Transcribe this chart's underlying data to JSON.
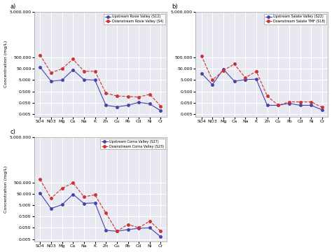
{
  "categories": [
    "SO4",
    "NO3",
    "Mg",
    "Ca",
    "Na",
    "K",
    "Zn",
    "Cu",
    "Pb",
    "Cd",
    "Ni",
    "Cr"
  ],
  "panels": [
    {
      "label": "a)",
      "upstream_label": "Upstream Rosie Valley (S12)",
      "downstream_label": "Downstream Rosie Valley (S4)",
      "upstream": [
        70.0,
        4.0,
        5.0,
        40.0,
        5.5,
        5.0,
        0.03,
        0.022,
        0.03,
        0.055,
        0.04,
        0.01
      ],
      "downstream": [
        800.0,
        22.0,
        50.0,
        350.0,
        30.0,
        30.0,
        0.35,
        0.2,
        0.18,
        0.16,
        0.28,
        0.025
      ]
    },
    {
      "label": "b)",
      "upstream_label": "Upstream Salate Valley (S22)",
      "downstream_label": "Downstream Salate TMF (S18)",
      "upstream": [
        20.0,
        2.0,
        45.0,
        4.0,
        5.5,
        6.0,
        0.03,
        0.03,
        0.045,
        0.03,
        0.03,
        0.012
      ],
      "downstream": [
        700.0,
        5.0,
        35.0,
        130.0,
        8.0,
        30.0,
        0.2,
        0.03,
        0.06,
        0.06,
        0.06,
        0.02
      ]
    },
    {
      "label": "c)",
      "upstream_label": "Upstream Corna Valley (S27)",
      "downstream_label": "Downstream Corna Valley (S23)",
      "upstream": [
        55.0,
        2.5,
        5.5,
        45.0,
        7.0,
        8.0,
        0.03,
        0.025,
        0.035,
        0.045,
        0.05,
        0.008
      ],
      "downstream": [
        900.0,
        20.0,
        150.0,
        450.0,
        27.0,
        40.0,
        1.0,
        0.025,
        0.1,
        0.05,
        0.2,
        0.025
      ]
    }
  ],
  "upstream_color": "#4444aa",
  "downstream_color": "#cc3333",
  "bg_color": "#e8e8f0",
  "grid_color": "#ffffff",
  "ylabel": "Concentration (mg/L)",
  "yticks": [
    0.005,
    0.05,
    0.5,
    5.0,
    50.0,
    500.0,
    5000000.0
  ],
  "yticklabels": [
    "0.005",
    "0.050",
    "0.500",
    "5.000",
    "50.000",
    "500.000",
    "5.000.000"
  ],
  "ylim": [
    0.003,
    3000000
  ]
}
